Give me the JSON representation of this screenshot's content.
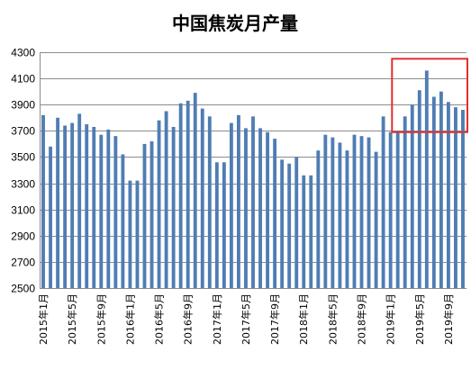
{
  "chart_data": {
    "type": "bar",
    "title": "中国焦炭月产量",
    "xlabel": "",
    "ylabel": "",
    "ylim": [
      2500,
      4300
    ],
    "yticks": [
      2500,
      2700,
      2900,
      3100,
      3300,
      3500,
      3700,
      3900,
      4100,
      4300
    ],
    "grid": true,
    "legend": "none",
    "bar_color": "#4f7db3",
    "highlight_color": "#e03030",
    "highlight_range": [
      "2019年2月",
      "2019年11月"
    ],
    "categories": [
      "2015年1月",
      "2015年2月",
      "2015年3月",
      "2015年4月",
      "2015年5月",
      "2015年6月",
      "2015年7月",
      "2015年8月",
      "2015年9月",
      "2015年10月",
      "2015年11月",
      "2015年12月",
      "2016年1月",
      "2016年2月",
      "2016年3月",
      "2016年4月",
      "2016年5月",
      "2016年6月",
      "2016年7月",
      "2016年8月",
      "2016年9月",
      "2016年10月",
      "2016年11月",
      "2016年12月",
      "2017年1月",
      "2017年2月",
      "2017年3月",
      "2017年4月",
      "2017年5月",
      "2017年6月",
      "2017年7月",
      "2017年8月",
      "2017年9月",
      "2017年10月",
      "2017年11月",
      "2017年12月",
      "2018年1月",
      "2018年2月",
      "2018年3月",
      "2018年4月",
      "2018年5月",
      "2018年6月",
      "2018年7月",
      "2018年8月",
      "2018年9月",
      "2018年10月",
      "2018年11月",
      "2018年12月",
      "2019年1月",
      "2019年2月",
      "2019年3月",
      "2019年4月",
      "2019年5月",
      "2019年6月",
      "2019年7月",
      "2019年8月",
      "2019年9月",
      "2019年10月",
      "2019年11月"
    ],
    "tick_labels": [
      "2015年1月",
      "2015年5月",
      "2015年9月",
      "2016年1月",
      "2016年5月",
      "2016年9月",
      "2017年1月",
      "2017年5月",
      "2017年9月",
      "2018年1月",
      "2018年5月",
      "2018年9月",
      "2019年1月",
      "2019年5月",
      "2019年9月"
    ],
    "values": [
      3820,
      3580,
      3800,
      3740,
      3760,
      3830,
      3750,
      3730,
      3670,
      3710,
      3660,
      3520,
      3320,
      3320,
      3600,
      3620,
      3780,
      3850,
      3730,
      3910,
      3930,
      3990,
      3870,
      3810,
      3460,
      3460,
      3760,
      3820,
      3720,
      3810,
      3720,
      3690,
      3640,
      3480,
      3450,
      3500,
      3360,
      3360,
      3550,
      3670,
      3650,
      3610,
      3550,
      3670,
      3660,
      3650,
      3540,
      3810,
      3690,
      3700,
      3810,
      3900,
      4010,
      4160,
      3960,
      4000,
      3920,
      3880,
      3860
    ]
  }
}
